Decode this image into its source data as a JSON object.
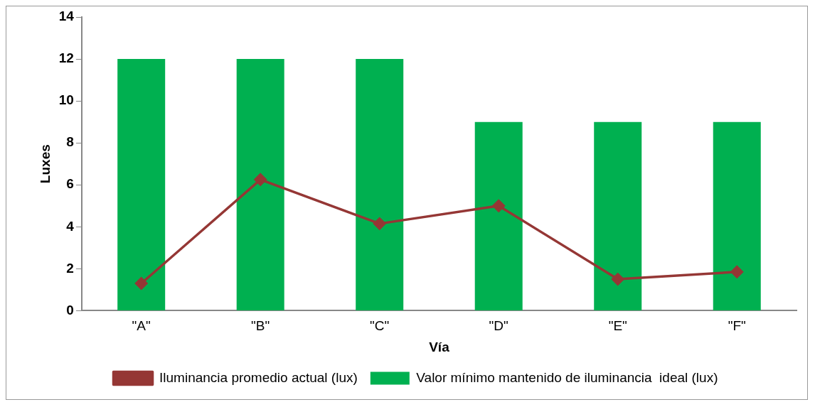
{
  "chart_data": {
    "type": "bar",
    "xlabel": "Vía",
    "ylabel": "Luxes",
    "categories": [
      "\"A\"",
      "\"B\"",
      "\"C\"",
      "\"D\"",
      "\"E\"",
      "\"F\""
    ],
    "series": [
      {
        "name": "Valor mínimo mantenido de iluminancia  ideal (lux)",
        "color": "#00b050",
        "values": [
          12,
          12,
          12,
          9,
          9,
          9
        ]
      },
      {
        "name": "Iluminancia promedio actual (lux)",
        "type": "line",
        "color": "#953735",
        "marker": "diamond",
        "values": [
          1.3,
          6.25,
          4.15,
          5.0,
          1.5,
          1.85
        ]
      }
    ],
    "ylim": [
      0,
      14
    ],
    "yticks": [
      0,
      2,
      4,
      6,
      8,
      10,
      12,
      14
    ],
    "grid": false,
    "legend": "bottom"
  }
}
